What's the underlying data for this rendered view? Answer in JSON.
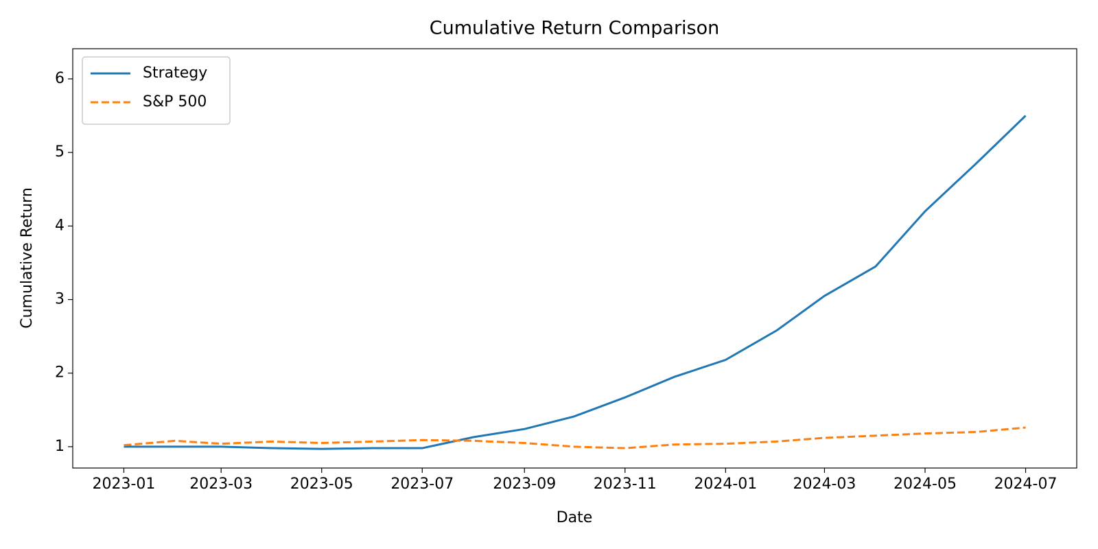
{
  "chart_data": {
    "type": "line",
    "title": "Cumulative Return Comparison",
    "xlabel": "Date",
    "ylabel": "Cumulative Return",
    "x": [
      "2023-01",
      "2023-02",
      "2023-03",
      "2023-04",
      "2023-05",
      "2023-06",
      "2023-07",
      "2023-08",
      "2023-09",
      "2023-10",
      "2023-11",
      "2023-12",
      "2024-01",
      "2024-02",
      "2024-03",
      "2024-04",
      "2024-05",
      "2024-06",
      "2024-07"
    ],
    "series": [
      {
        "name": "Strategy",
        "color": "#1f77b4",
        "dash": "solid",
        "values": [
          1.0,
          1.0,
          1.0,
          0.98,
          0.97,
          0.98,
          0.98,
          1.13,
          1.24,
          1.41,
          1.67,
          1.95,
          2.18,
          2.58,
          3.05,
          3.45,
          4.2,
          4.85,
          5.5
        ]
      },
      {
        "name": "S&P 500",
        "color": "#ff7f0e",
        "dash": "dashed",
        "values": [
          1.02,
          1.08,
          1.04,
          1.07,
          1.05,
          1.07,
          1.09,
          1.08,
          1.05,
          1.0,
          0.98,
          1.03,
          1.04,
          1.07,
          1.12,
          1.15,
          1.18,
          1.2,
          1.26
        ]
      }
    ],
    "xlim": [
      "2022-12",
      "2024-08"
    ],
    "xticks": [
      "2023-01",
      "2023-03",
      "2023-05",
      "2023-07",
      "2023-09",
      "2023-11",
      "2024-01",
      "2024-03",
      "2024-05",
      "2024-07"
    ],
    "ylim": [
      0.71,
      6.41
    ],
    "yticks": [
      1,
      2,
      3,
      4,
      5,
      6
    ],
    "grid": false,
    "legend": "upper left"
  }
}
